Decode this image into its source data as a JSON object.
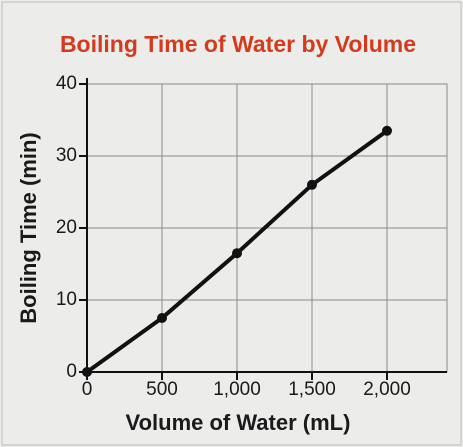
{
  "chart_data": {
    "type": "line",
    "title": "Boiling Time of Water by Volume",
    "x_label": "Volume of Water (mL)",
    "y_label": "Boiling Time (min)",
    "x": [
      0,
      500,
      1000,
      1500,
      2000
    ],
    "series": [
      {
        "name": "Boiling time",
        "color": "#111111",
        "values": [
          0,
          7.5,
          16.5,
          26,
          33.5
        ]
      }
    ],
    "xlim": [
      0,
      2400
    ],
    "ylim": [
      0,
      40
    ],
    "xticks": [
      0,
      500,
      {
        "value": 1000,
        "label": "1,000"
      },
      {
        "value": 1500,
        "label": "1,500"
      },
      {
        "value": 2000,
        "label": "2,000"
      }
    ],
    "yticks": [
      0,
      10,
      20,
      30,
      40
    ],
    "grid": true,
    "title_color": "#d23b1e"
  }
}
